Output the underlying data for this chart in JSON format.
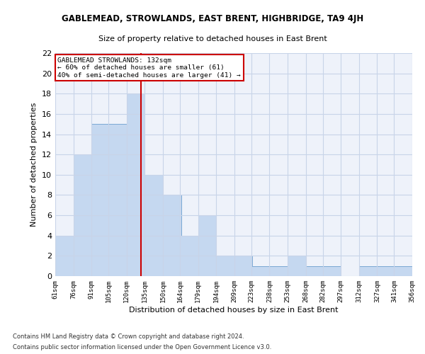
{
  "title": "GABLEMEAD, STROWLANDS, EAST BRENT, HIGHBRIDGE, TA9 4JH",
  "subtitle": "Size of property relative to detached houses in East Brent",
  "xlabel": "Distribution of detached houses by size in East Brent",
  "ylabel": "Number of detached properties",
  "bar_values": [
    4,
    12,
    15,
    15,
    18,
    10,
    8,
    4,
    6,
    2,
    2,
    1,
    1,
    2,
    1,
    1,
    0,
    1,
    1,
    1
  ],
  "bin_labels": [
    "61sqm",
    "76sqm",
    "91sqm",
    "105sqm",
    "120sqm",
    "135sqm",
    "150sqm",
    "164sqm",
    "179sqm",
    "194sqm",
    "209sqm",
    "223sqm",
    "238sqm",
    "253sqm",
    "268sqm",
    "282sqm",
    "297sqm",
    "312sqm",
    "327sqm",
    "341sqm",
    "356sqm"
  ],
  "bar_color": "#c5d8f0",
  "bar_edge_color": "#7aa8d4",
  "grid_color": "#c8d4e8",
  "vline_x": 132,
  "vline_color": "#cc0000",
  "annotation_title": "GABLEMEAD STROWLANDS: 132sqm",
  "annotation_line1": "← 60% of detached houses are smaller (61)",
  "annotation_line2": "40% of semi-detached houses are larger (41) →",
  "annotation_box_color": "#ffffff",
  "annotation_border_color": "#cc0000",
  "ylim": [
    0,
    22
  ],
  "yticks": [
    0,
    2,
    4,
    6,
    8,
    10,
    12,
    14,
    16,
    18,
    20,
    22
  ],
  "footnote1": "Contains HM Land Registry data © Crown copyright and database right 2024.",
  "footnote2": "Contains public sector information licensed under the Open Government Licence v3.0.",
  "background_color": "#eef2fa",
  "bin_starts": [
    61,
    76,
    91,
    105,
    120,
    135,
    150,
    164,
    179,
    194,
    209,
    223,
    238,
    253,
    268,
    282,
    297,
    312,
    327,
    341
  ],
  "bin_width": 15
}
